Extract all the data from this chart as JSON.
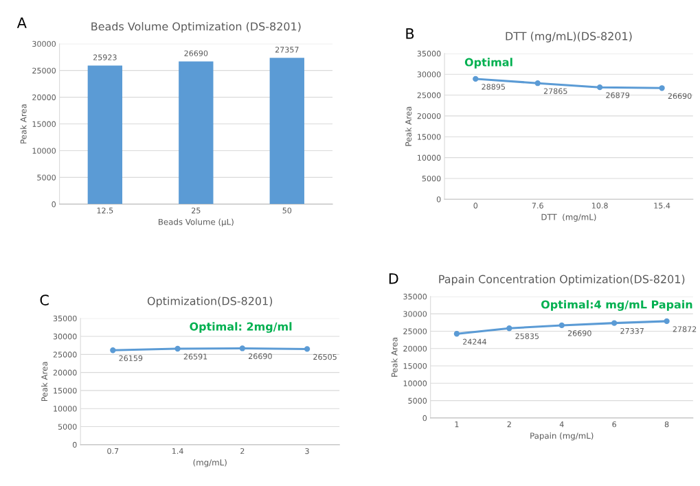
{
  "chart_data": [
    {
      "type": "bar",
      "title": "Beads Volume Optimization (DS-8201)",
      "xlabel": "Beads Volume (µL)",
      "ylabel": "Peak Area",
      "categories": [
        "12.5",
        "25",
        "50"
      ],
      "series": [
        {
          "color": "#5b9bd5",
          "values": [
            25923,
            26690,
            27357
          ]
        }
      ],
      "data_labels": true,
      "ylim": [
        0,
        30000
      ],
      "yticks": [
        0,
        5000,
        10000,
        15000,
        20000,
        25000,
        30000
      ],
      "grid": "y",
      "annotations": [
        "A"
      ]
    },
    {
      "type": "line",
      "title": "DTT (mg/mL)(DS-8201)",
      "xlabel": "DTT  (mg/mL)",
      "ylabel": "Peak Area",
      "categories": [
        "0",
        "7.6",
        "10.8",
        "15.4"
      ],
      "series": [
        {
          "color": "#5b9bd5",
          "values": [
            28895,
            27865,
            26879,
            26690
          ]
        }
      ],
      "data_labels": true,
      "marker": "circle",
      "ylim": [
        0,
        35000
      ],
      "yticks": [
        0,
        5000,
        10000,
        15000,
        20000,
        25000,
        30000,
        35000
      ],
      "grid": "y",
      "annotations": [
        "B",
        "Optimal"
      ]
    },
    {
      "type": "line",
      "title": "Optimization(DS-8201)",
      "xlabel": "(mg/mL)",
      "ylabel": "Peak Area",
      "categories": [
        "0.7",
        "1.4",
        "2",
        "3"
      ],
      "series": [
        {
          "color": "#5b9bd5",
          "values": [
            26159,
            26591,
            26690,
            26505
          ]
        }
      ],
      "data_labels": true,
      "marker": "circle",
      "ylim": [
        0,
        35000
      ],
      "yticks": [
        0,
        5000,
        10000,
        15000,
        20000,
        25000,
        30000,
        35000
      ],
      "grid": "y",
      "annotations": [
        "C",
        "Optimal: 2mg/ml"
      ]
    },
    {
      "type": "line",
      "title": "Papain Concentration Optimization(DS-8201)",
      "xlabel": "Papain (mg/mL)",
      "ylabel": "Peak Area",
      "categories": [
        "1",
        "2",
        "4",
        "6",
        "8"
      ],
      "series": [
        {
          "color": "#5b9bd5",
          "values": [
            24244,
            25835,
            26690,
            27337,
            27872
          ]
        }
      ],
      "data_labels": true,
      "marker": "circle",
      "ylim": [
        0,
        35000
      ],
      "yticks": [
        0,
        5000,
        10000,
        15000,
        20000,
        25000,
        30000,
        35000
      ],
      "grid": "y",
      "annotations": [
        "D",
        "Optimal:4 mg/mL Papain"
      ]
    }
  ]
}
